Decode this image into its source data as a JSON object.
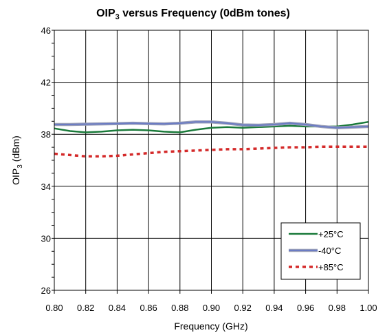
{
  "chart_data": {
    "type": "line",
    "title": "OIP",
    "title_subscript": "3",
    "title_suffix": " versus Frequency (0dBm tones)",
    "xlabel": "Frequency (GHz)",
    "ylabel": "OIP",
    "ylabel_subscript": "3",
    "ylabel_suffix": " (dBm)",
    "xlim": [
      0.8,
      1.0
    ],
    "ylim": [
      26,
      46
    ],
    "xticks": [
      "0.80",
      "0.82",
      "0.84",
      "0.86",
      "0.88",
      "0.90",
      "0.92",
      "0.94",
      "0.96",
      "0.98",
      "1.00"
    ],
    "yticks": [
      "26",
      "30",
      "34",
      "38",
      "42",
      "46"
    ],
    "grid": true,
    "legend_position": "bottom-right",
    "series": [
      {
        "name": "+25°C",
        "color": "#1a7a3a",
        "style": "solid",
        "x": [
          0.8,
          0.81,
          0.82,
          0.83,
          0.84,
          0.85,
          0.86,
          0.87,
          0.88,
          0.89,
          0.9,
          0.91,
          0.92,
          0.93,
          0.94,
          0.95,
          0.96,
          0.97,
          0.98,
          0.99,
          1.0
        ],
        "y": [
          38.45,
          38.25,
          38.15,
          38.2,
          38.3,
          38.35,
          38.3,
          38.2,
          38.15,
          38.35,
          38.5,
          38.55,
          38.5,
          38.55,
          38.6,
          38.65,
          38.6,
          38.6,
          38.6,
          38.75,
          38.95
        ]
      },
      {
        "name": "-40°C",
        "color": "#6b7cc4",
        "style": "solid",
        "x": [
          0.8,
          0.81,
          0.82,
          0.83,
          0.84,
          0.85,
          0.86,
          0.87,
          0.88,
          0.89,
          0.9,
          0.91,
          0.92,
          0.93,
          0.94,
          0.95,
          0.96,
          0.97,
          0.98,
          0.99,
          1.0
        ],
        "y": [
          38.75,
          38.75,
          38.78,
          38.8,
          38.82,
          38.85,
          38.82,
          38.8,
          38.85,
          38.95,
          38.95,
          38.85,
          38.72,
          38.7,
          38.75,
          38.85,
          38.75,
          38.6,
          38.5,
          38.55,
          38.6
        ]
      },
      {
        "name": "+85°C",
        "color": "#d42a2a",
        "style": "dotted",
        "x": [
          0.8,
          0.81,
          0.82,
          0.83,
          0.84,
          0.85,
          0.86,
          0.87,
          0.88,
          0.89,
          0.9,
          0.91,
          0.92,
          0.93,
          0.94,
          0.95,
          0.96,
          0.97,
          0.98,
          0.99,
          1.0
        ],
        "y": [
          36.5,
          36.4,
          36.3,
          36.3,
          36.35,
          36.45,
          36.55,
          36.65,
          36.7,
          36.75,
          36.8,
          36.85,
          36.85,
          36.9,
          36.95,
          37.0,
          37.0,
          37.05,
          37.05,
          37.05,
          37.05
        ]
      }
    ]
  }
}
